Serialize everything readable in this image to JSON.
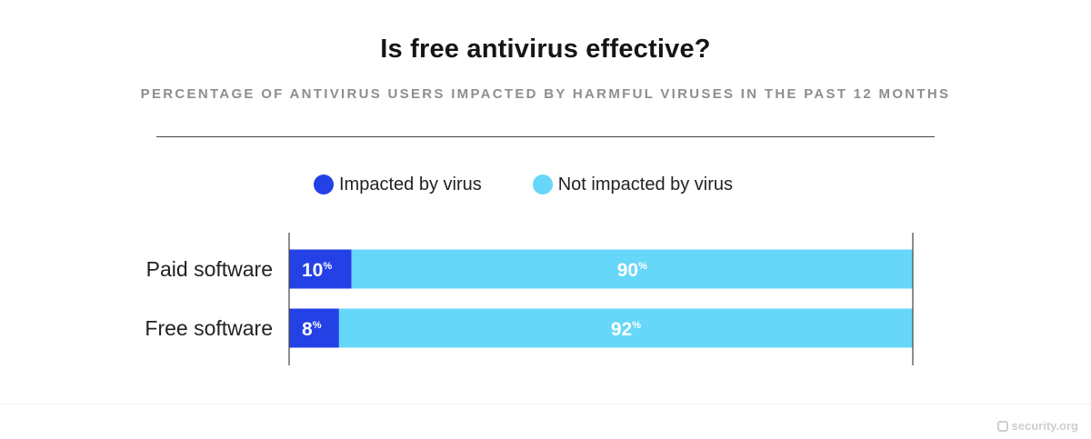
{
  "chart_data": {
    "type": "bar",
    "orientation": "horizontal",
    "stacked": true,
    "title": "Is free antivirus effective?",
    "subtitle": "PERCENTAGE OF ANTIVIRUS USERS IMPACTED BY HARMFUL VIRUSES IN THE PAST 12 MONTHS",
    "categories": [
      "Paid software",
      "Free software"
    ],
    "series": [
      {
        "name": "Impacted by virus",
        "values": [
          10,
          8
        ],
        "color": "#2441e6"
      },
      {
        "name": "Not impacted by virus",
        "values": [
          90,
          92
        ],
        "color": "#66d7f8"
      }
    ],
    "value_suffix": "%",
    "xlim": [
      0,
      100
    ],
    "legend_position": "top-center",
    "grid": false
  },
  "brand": {
    "name": "security.org"
  }
}
